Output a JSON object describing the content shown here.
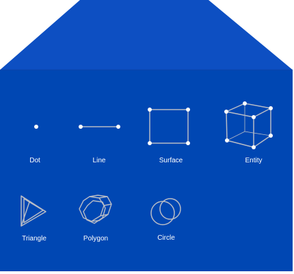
{
  "colors": {
    "background": "#0047b3",
    "roof": "#0d4fc2",
    "line": "#b8bcc6",
    "dot": "#ffffff",
    "text": "#ffffff"
  },
  "shapes": [
    {
      "label": "Dot",
      "icon": "dot-icon"
    },
    {
      "label": "Line",
      "icon": "line-icon"
    },
    {
      "label": "Surface",
      "icon": "square-icon"
    },
    {
      "label": "Entity",
      "icon": "cube-icon"
    },
    {
      "label": "Triangle",
      "icon": "tetrahedron-icon"
    },
    {
      "label": "Polygon",
      "icon": "prism-icon"
    },
    {
      "label": "Circle",
      "icon": "circles-icon"
    }
  ]
}
